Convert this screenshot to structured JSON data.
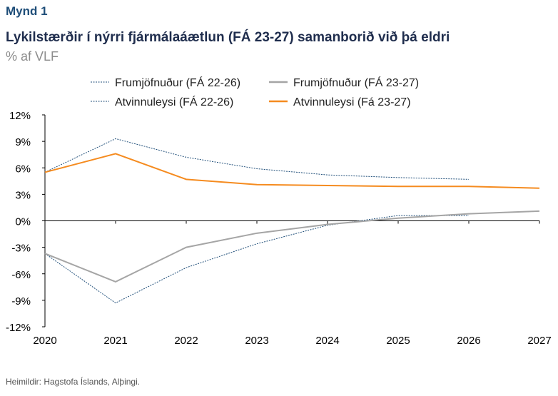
{
  "figure_label": "Mynd 1",
  "source": "Heimildir: Hagstofa Íslands, Alþingi.",
  "chart_data": {
    "type": "line",
    "title": "Lykilstærðir í nýrri fjármálaáætlun (FÁ 23-27) samanborið við þá eldri",
    "subtitle": "% af VLF",
    "x": [
      2020,
      2021,
      2022,
      2023,
      2024,
      2025,
      2026,
      2027
    ],
    "xticks": [
      "2020",
      "2021",
      "2022",
      "2023",
      "2024",
      "2025",
      "2026",
      "2027"
    ],
    "ylim": [
      -12,
      12
    ],
    "yticks": [
      12,
      9,
      6,
      3,
      0,
      -3,
      -6,
      -9,
      -12
    ],
    "ytick_labels": [
      "12%",
      "9%",
      "6%",
      "3%",
      "0%",
      "-3%",
      "-6%",
      "-9%",
      "-12%"
    ],
    "legend_placement": "top",
    "series": [
      {
        "name": "Frumjöfnuður (FÁ 22-26)",
        "color": "#1f4e79",
        "dash": true,
        "values": [
          -3.7,
          -9.3,
          -5.3,
          -2.6,
          -0.5,
          0.6,
          0.6,
          null
        ]
      },
      {
        "name": "Frumjöfnuður (FÁ 23-27)",
        "color": "#a5a5a5",
        "dash": false,
        "values": [
          -3.7,
          -6.9,
          -3.0,
          -1.4,
          -0.4,
          0.3,
          0.8,
          1.1
        ]
      },
      {
        "name": "Atvinnuleysi (FÁ 22-26)",
        "color": "#1f4e79",
        "dash": true,
        "values": [
          5.5,
          9.3,
          7.2,
          5.9,
          5.2,
          4.9,
          4.7,
          null
        ]
      },
      {
        "name": "Atvinnuleysi (Fá 23-27)",
        "color": "#f58b1f",
        "dash": false,
        "values": [
          5.5,
          7.6,
          4.7,
          4.1,
          4.0,
          3.9,
          3.9,
          3.7
        ]
      }
    ]
  }
}
